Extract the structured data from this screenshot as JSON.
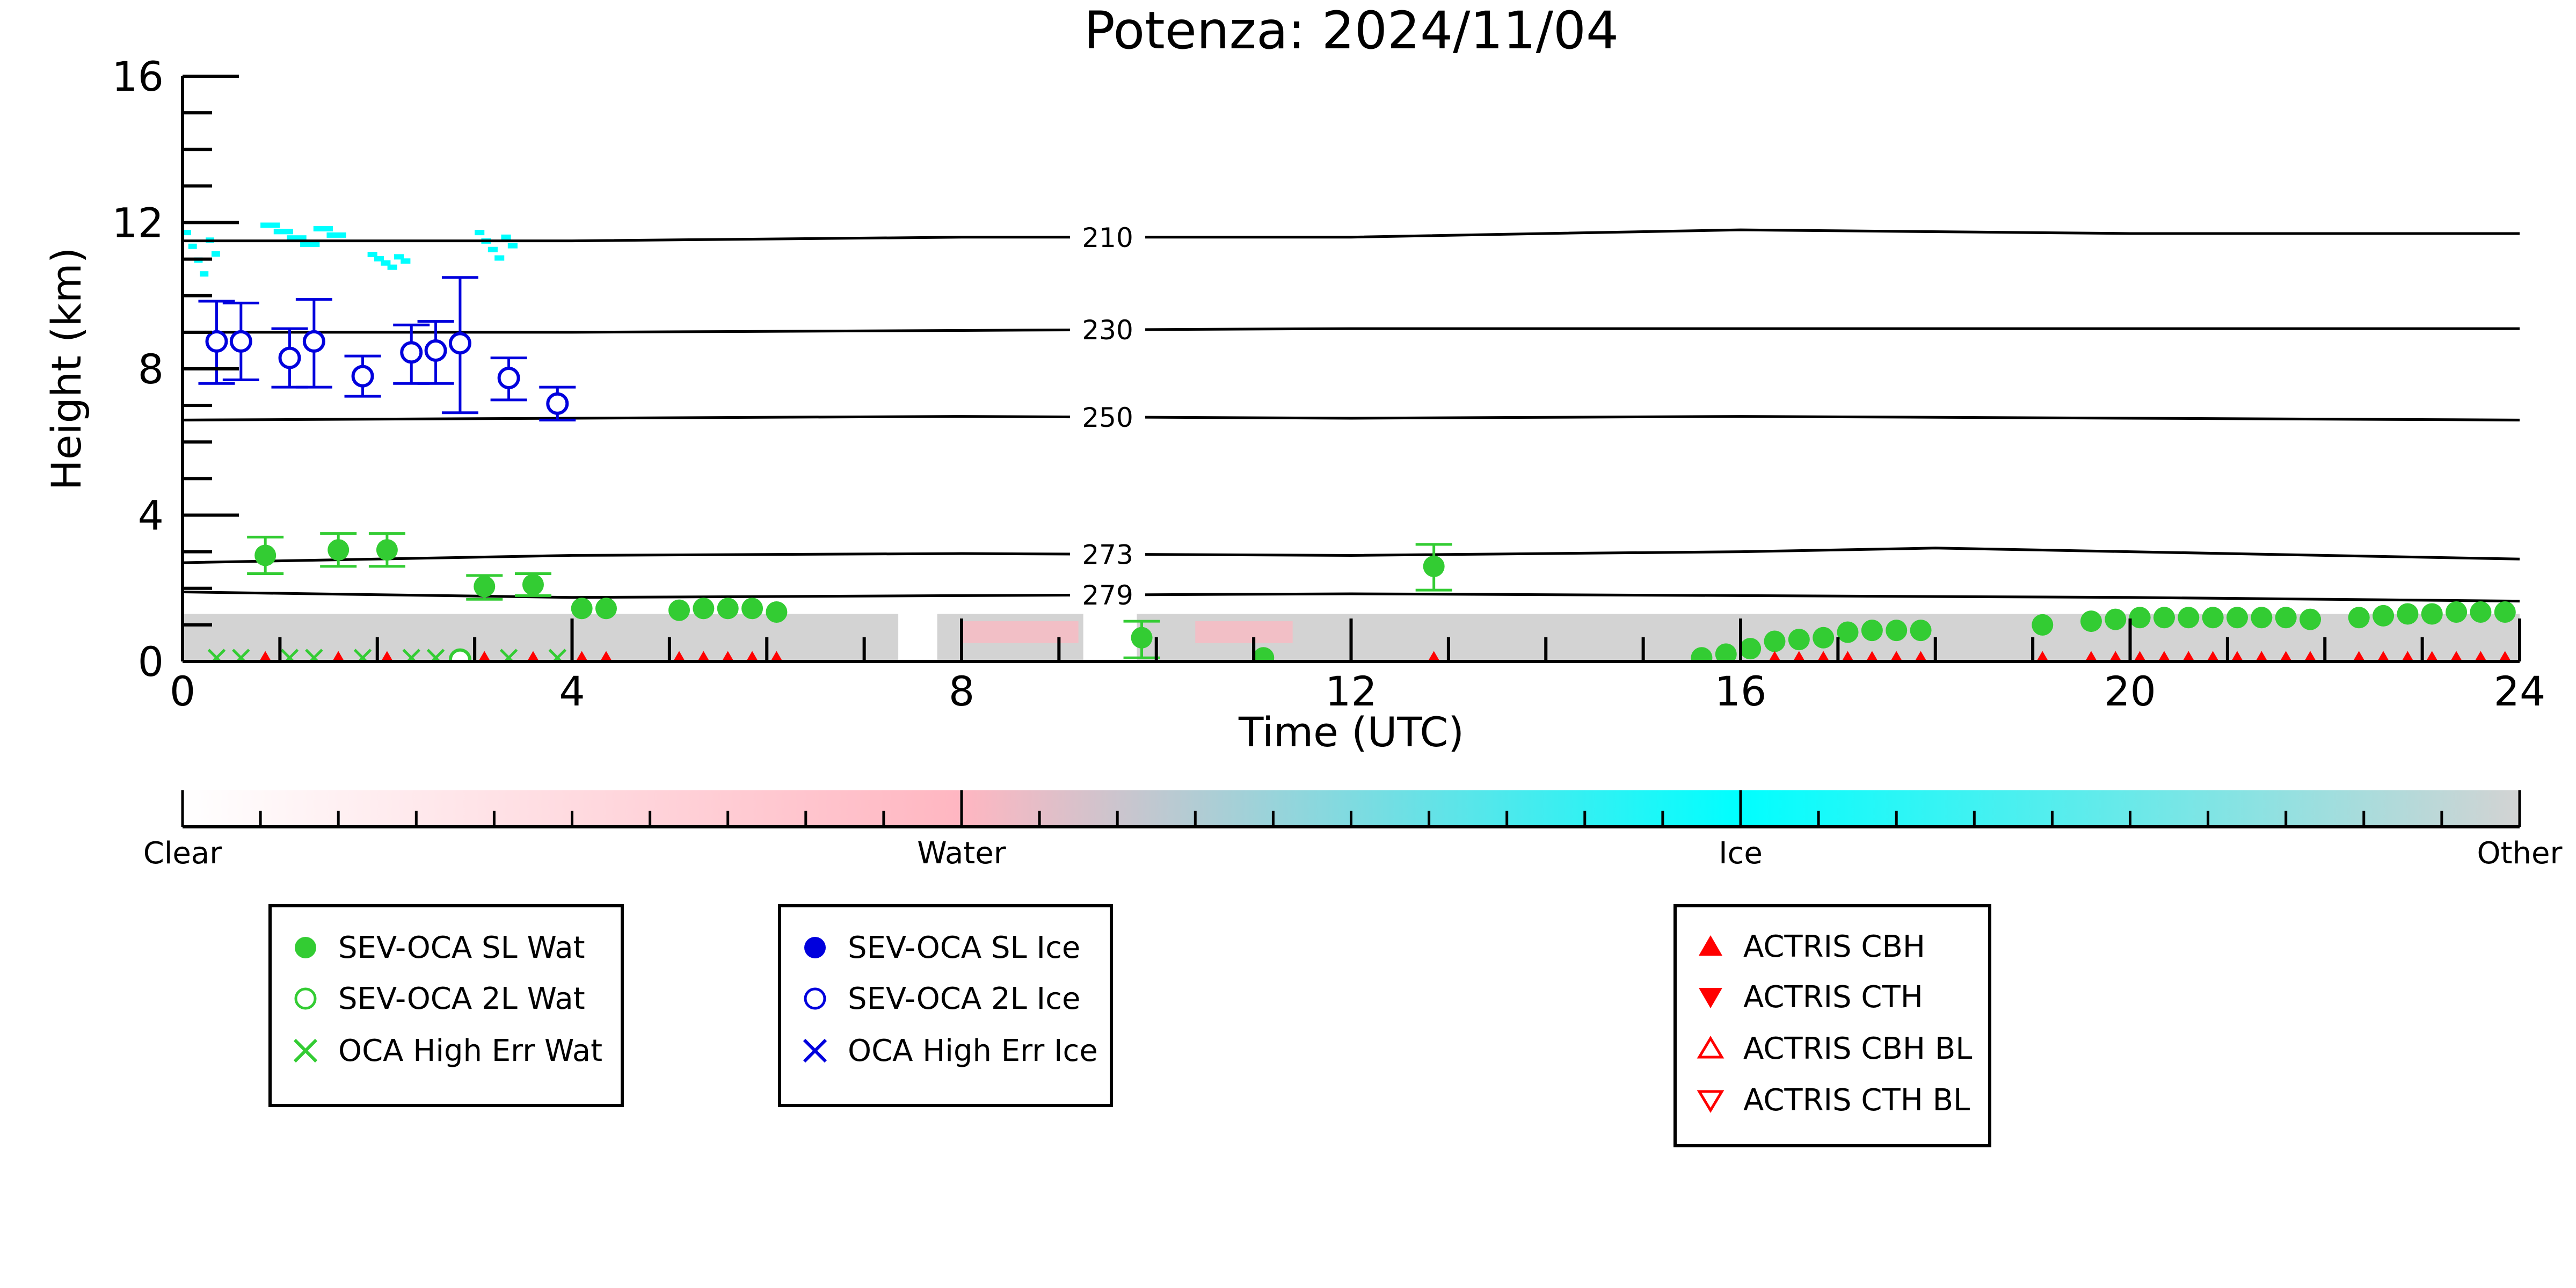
{
  "chart_data": {
    "type": "scatter",
    "title": "Potenza: 2024/11/04",
    "xlabel": "Time (UTC)",
    "ylabel": "Height (km)",
    "xlim": [
      0,
      24
    ],
    "ylim": [
      0,
      16
    ],
    "x_ticks": [
      0,
      4,
      8,
      12,
      16,
      20,
      24
    ],
    "y_ticks": [
      0,
      4,
      8,
      12,
      16
    ],
    "x_tick_labels": [
      "0",
      "4",
      "8",
      "12",
      "16",
      "20",
      "24"
    ],
    "y_tick_labels": [
      "0",
      "4",
      "8",
      "12",
      "16"
    ],
    "grid": false,
    "colorbar": {
      "labels": [
        "Clear",
        "Water",
        "Ice",
        "Other"
      ],
      "colors": [
        "#ffffff",
        "#ffb6c1",
        "#00ffff",
        "#d3d3d3"
      ]
    },
    "isotherms": [
      {
        "label": "210",
        "label_x": 9.5,
        "points": [
          [
            0,
            11.5
          ],
          [
            4,
            11.5
          ],
          [
            8,
            11.6
          ],
          [
            12,
            11.6
          ],
          [
            16,
            11.8
          ],
          [
            20,
            11.7
          ],
          [
            24,
            11.7
          ]
        ]
      },
      {
        "label": "230",
        "label_x": 9.5,
        "points": [
          [
            0,
            9.0
          ],
          [
            4,
            9.0
          ],
          [
            8,
            9.05
          ],
          [
            12,
            9.1
          ],
          [
            16,
            9.1
          ],
          [
            20,
            9.1
          ],
          [
            24,
            9.1
          ]
        ]
      },
      {
        "label": "250",
        "label_x": 9.5,
        "points": [
          [
            0,
            6.6
          ],
          [
            4,
            6.65
          ],
          [
            8,
            6.7
          ],
          [
            12,
            6.65
          ],
          [
            16,
            6.7
          ],
          [
            20,
            6.65
          ],
          [
            24,
            6.6
          ]
        ]
      },
      {
        "label": "273",
        "label_x": 9.5,
        "points": [
          [
            0,
            2.7
          ],
          [
            4,
            2.9
          ],
          [
            8,
            2.95
          ],
          [
            12,
            2.9
          ],
          [
            16,
            3.0
          ],
          [
            18,
            3.1
          ],
          [
            20,
            3.0
          ],
          [
            24,
            2.8
          ]
        ]
      },
      {
        "label": "279",
        "label_x": 9.5,
        "points": [
          [
            0,
            1.9
          ],
          [
            4,
            1.75
          ],
          [
            8,
            1.8
          ],
          [
            12,
            1.85
          ],
          [
            16,
            1.8
          ],
          [
            20,
            1.75
          ],
          [
            24,
            1.65
          ]
        ]
      }
    ],
    "series": [
      {
        "name": "SEV-OCA SL Wat",
        "color": "#33cc33",
        "marker": "filled-circle",
        "points": [
          {
            "x": 0.85,
            "y": 2.9,
            "lo": 2.4,
            "hi": 3.4
          },
          {
            "x": 1.6,
            "y": 3.05,
            "lo": 2.6,
            "hi": 3.5
          },
          {
            "x": 2.1,
            "y": 3.05,
            "lo": 2.6,
            "hi": 3.5
          },
          {
            "x": 3.1,
            "y": 2.05,
            "lo": 1.7,
            "hi": 2.35
          },
          {
            "x": 3.6,
            "y": 2.1,
            "lo": 1.8,
            "hi": 2.4
          },
          {
            "x": 4.1,
            "y": 1.45
          },
          {
            "x": 4.35,
            "y": 1.45
          },
          {
            "x": 5.1,
            "y": 1.4
          },
          {
            "x": 5.35,
            "y": 1.45
          },
          {
            "x": 5.6,
            "y": 1.45
          },
          {
            "x": 5.85,
            "y": 1.45
          },
          {
            "x": 6.1,
            "y": 1.35
          },
          {
            "x": 9.85,
            "y": 0.65,
            "lo": 0.1,
            "hi": 1.1
          },
          {
            "x": 11.1,
            "y": 0.1
          },
          {
            "x": 12.85,
            "y": 2.6,
            "lo": 1.95,
            "hi": 3.2
          },
          {
            "x": 15.6,
            "y": 0.1
          },
          {
            "x": 15.85,
            "y": 0.2
          },
          {
            "x": 16.1,
            "y": 0.35
          },
          {
            "x": 16.35,
            "y": 0.55
          },
          {
            "x": 16.6,
            "y": 0.6
          },
          {
            "x": 16.85,
            "y": 0.65
          },
          {
            "x": 17.1,
            "y": 0.8
          },
          {
            "x": 17.35,
            "y": 0.85
          },
          {
            "x": 17.6,
            "y": 0.85
          },
          {
            "x": 17.85,
            "y": 0.85
          },
          {
            "x": 19.1,
            "y": 1.0
          },
          {
            "x": 19.6,
            "y": 1.1
          },
          {
            "x": 19.85,
            "y": 1.15
          },
          {
            "x": 20.1,
            "y": 1.2
          },
          {
            "x": 20.35,
            "y": 1.2
          },
          {
            "x": 20.6,
            "y": 1.2
          },
          {
            "x": 20.85,
            "y": 1.2
          },
          {
            "x": 21.1,
            "y": 1.2
          },
          {
            "x": 21.35,
            "y": 1.2
          },
          {
            "x": 21.6,
            "y": 1.2
          },
          {
            "x": 21.85,
            "y": 1.15
          },
          {
            "x": 22.35,
            "y": 1.2
          },
          {
            "x": 22.6,
            "y": 1.25
          },
          {
            "x": 22.85,
            "y": 1.3
          },
          {
            "x": 23.1,
            "y": 1.3
          },
          {
            "x": 23.35,
            "y": 1.35
          },
          {
            "x": 23.6,
            "y": 1.35
          },
          {
            "x": 23.85,
            "y": 1.35
          }
        ]
      },
      {
        "name": "SEV-OCA 2L Wat",
        "color": "#33cc33",
        "marker": "open-circle",
        "points": [
          {
            "x": 2.85,
            "y": 0.05
          }
        ]
      },
      {
        "name": "OCA High Err Wat",
        "color": "#33cc33",
        "marker": "x",
        "points": [
          {
            "x": 0.35,
            "y": 0.1
          },
          {
            "x": 0.6,
            "y": 0.1
          },
          {
            "x": 1.1,
            "y": 0.1
          },
          {
            "x": 1.35,
            "y": 0.1
          },
          {
            "x": 1.85,
            "y": 0.1
          },
          {
            "x": 2.35,
            "y": 0.1
          },
          {
            "x": 2.6,
            "y": 0.1
          },
          {
            "x": 3.35,
            "y": 0.1
          },
          {
            "x": 3.85,
            "y": 0.1
          }
        ]
      },
      {
        "name": "SEV-OCA SL Ice",
        "color": "#0000dd",
        "marker": "filled-circle",
        "points": []
      },
      {
        "name": "SEV-OCA 2L Ice",
        "color": "#0000dd",
        "marker": "open-circle",
        "points": [
          {
            "x": 0.35,
            "y": 8.75,
            "lo": 7.6,
            "hi": 9.85
          },
          {
            "x": 0.6,
            "y": 8.75,
            "lo": 7.7,
            "hi": 9.8
          },
          {
            "x": 1.1,
            "y": 8.3,
            "lo": 7.5,
            "hi": 9.1
          },
          {
            "x": 1.35,
            "y": 8.75,
            "lo": 7.5,
            "hi": 9.9
          },
          {
            "x": 1.85,
            "y": 7.8,
            "lo": 7.25,
            "hi": 8.35
          },
          {
            "x": 2.35,
            "y": 8.45,
            "lo": 7.6,
            "hi": 9.2
          },
          {
            "x": 2.6,
            "y": 8.5,
            "lo": 7.6,
            "hi": 9.3
          },
          {
            "x": 2.85,
            "y": 8.7,
            "lo": 6.8,
            "hi": 10.5
          },
          {
            "x": 3.35,
            "y": 7.75,
            "lo": 7.15,
            "hi": 8.3
          },
          {
            "x": 3.85,
            "y": 7.05,
            "lo": 6.6,
            "hi": 7.5
          }
        ]
      },
      {
        "name": "OCA High Err Ice",
        "color": "#0000dd",
        "marker": "x",
        "points": []
      },
      {
        "name": "ACTRIS CBH",
        "color": "#ff0000",
        "marker": "triangle-up",
        "points": [
          {
            "x": 0.85,
            "y": 0.08
          },
          {
            "x": 1.6,
            "y": 0.08
          },
          {
            "x": 2.1,
            "y": 0.08
          },
          {
            "x": 3.1,
            "y": 0.08
          },
          {
            "x": 3.6,
            "y": 0.08
          },
          {
            "x": 4.1,
            "y": 0.08
          },
          {
            "x": 4.35,
            "y": 0.08
          },
          {
            "x": 5.1,
            "y": 0.08
          },
          {
            "x": 5.35,
            "y": 0.08
          },
          {
            "x": 5.6,
            "y": 0.08
          },
          {
            "x": 5.85,
            "y": 0.08
          },
          {
            "x": 6.1,
            "y": 0.08
          },
          {
            "x": 12.85,
            "y": 0.08
          },
          {
            "x": 16.35,
            "y": 0.08
          },
          {
            "x": 16.6,
            "y": 0.08
          },
          {
            "x": 16.85,
            "y": 0.08
          },
          {
            "x": 17.1,
            "y": 0.08
          },
          {
            "x": 17.35,
            "y": 0.08
          },
          {
            "x": 17.6,
            "y": 0.08
          },
          {
            "x": 17.85,
            "y": 0.08
          },
          {
            "x": 19.1,
            "y": 0.08
          },
          {
            "x": 19.6,
            "y": 0.08
          },
          {
            "x": 19.85,
            "y": 0.08
          },
          {
            "x": 20.1,
            "y": 0.08
          },
          {
            "x": 20.35,
            "y": 0.08
          },
          {
            "x": 20.6,
            "y": 0.08
          },
          {
            "x": 20.85,
            "y": 0.08
          },
          {
            "x": 21.1,
            "y": 0.08
          },
          {
            "x": 21.35,
            "y": 0.08
          },
          {
            "x": 21.6,
            "y": 0.08
          },
          {
            "x": 21.85,
            "y": 0.08
          },
          {
            "x": 22.35,
            "y": 0.08
          },
          {
            "x": 22.6,
            "y": 0.08
          },
          {
            "x": 22.85,
            "y": 0.08
          },
          {
            "x": 23.1,
            "y": 0.08
          },
          {
            "x": 23.35,
            "y": 0.08
          },
          {
            "x": 23.6,
            "y": 0.08
          },
          {
            "x": 23.85,
            "y": 0.08
          }
        ]
      },
      {
        "name": "ACTRIS CTH",
        "color": "#ff0000",
        "marker": "triangle-down",
        "points": []
      },
      {
        "name": "ACTRIS CBH BL",
        "color": "#ff0000",
        "marker": "open-triangle-up",
        "points": []
      },
      {
        "name": "ACTRIS CTH BL",
        "color": "#ff0000",
        "marker": "open-triangle-down",
        "points": []
      }
    ],
    "cloud_mask": {
      "other_band": {
        "color": "#d3d3d3",
        "top_km": 1.3,
        "gaps": [
          [
            7.35,
            7.75
          ],
          [
            9.25,
            9.8
          ]
        ]
      },
      "ice_patches": {
        "color": "#00ffff",
        "regions": [
          [
            0.0,
            0.35,
            10.5,
            11.8
          ],
          [
            0.8,
            1.6,
            11.4,
            12.0
          ],
          [
            1.9,
            2.3,
            10.8,
            11.2
          ],
          [
            3.0,
            3.4,
            11.0,
            11.8
          ]
        ]
      },
      "water_patches": {
        "color": "#ffb6c1",
        "regions": [
          [
            8.0,
            9.2,
            0.5,
            1.1
          ],
          [
            10.4,
            11.4,
            0.5,
            1.1
          ]
        ]
      }
    },
    "legends": [
      {
        "items": [
          "SEV-OCA SL Wat",
          "SEV-OCA 2L Wat",
          "OCA High Err Wat"
        ]
      },
      {
        "items": [
          "SEV-OCA SL Ice",
          "SEV-OCA 2L Ice",
          "OCA High Err Ice"
        ]
      },
      {
        "items": [
          "ACTRIS CBH",
          "ACTRIS CTH",
          "ACTRIS CBH BL",
          "ACTRIS CTH BL"
        ]
      }
    ]
  }
}
